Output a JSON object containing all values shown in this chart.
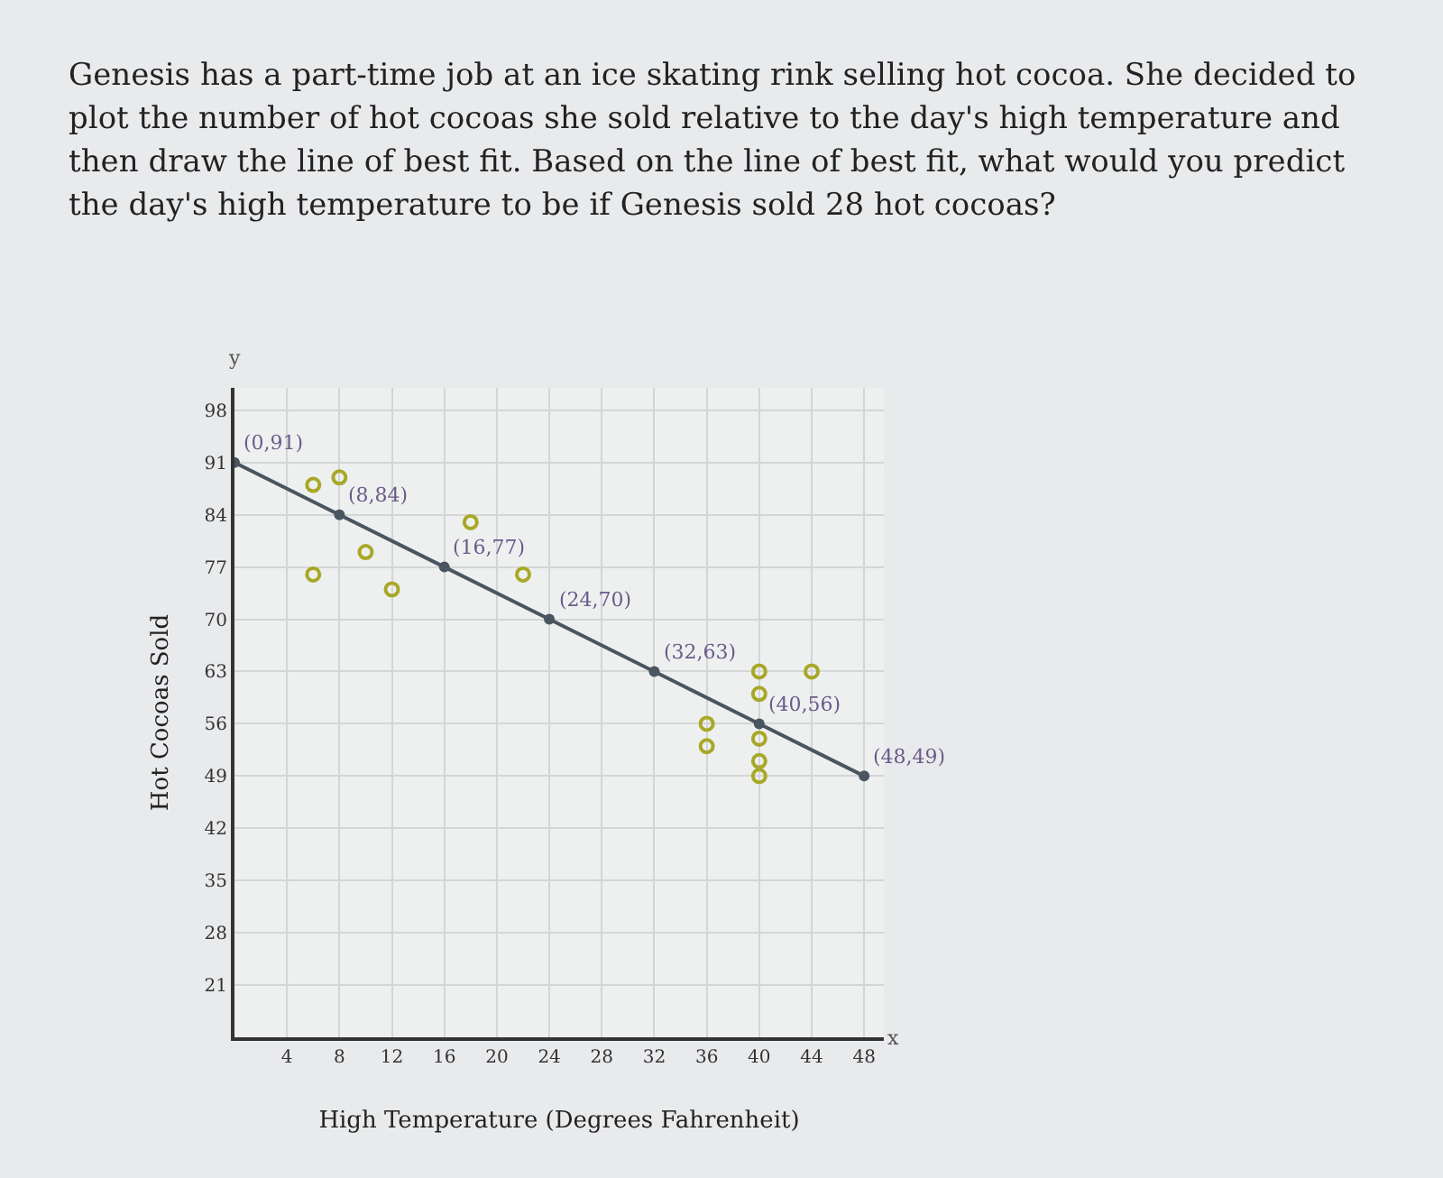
{
  "chart_data": {
    "type": "scatter",
    "title": "Genesis has a part-time job at an ice skating rink selling hot cocoa. She decided to plot the number of hot cocoas she sold relative to the day's high temperature and then draw the line of best fit. Based on the line of best fit, what would you predict the day's high temperature to be if Genesis sold 28 hot cocoas?",
    "xlabel": "High Temperature (Degrees Fahrenheit)",
    "ylabel": "Hot Cocoas Sold",
    "annotations": [
      "x",
      "y",
      {
        "text": "(0,91)",
        "x": 0,
        "y": 91
      },
      {
        "text": "(8,84)",
        "x": 8,
        "y": 84
      },
      {
        "text": "(16,77)",
        "x": 16,
        "y": 77
      },
      {
        "text": "(24,70)",
        "x": 24,
        "y": 70
      },
      {
        "text": "(32,63)",
        "x": 32,
        "y": 63
      },
      {
        "text": "(40,56)",
        "x": 40,
        "y": 56
      },
      {
        "text": "(48,49)",
        "x": 48,
        "y": 49
      }
    ],
    "series": [
      {
        "color": "#a8a828",
        "x": [
          6,
          8,
          6,
          10,
          12,
          18,
          22,
          36,
          36,
          40,
          40,
          40,
          40,
          40,
          44
        ],
        "values": [
          88,
          89,
          76,
          79,
          74,
          83,
          76,
          56,
          53,
          63,
          60,
          54,
          51,
          49,
          63
        ]
      },
      {
        "type": "line",
        "color": "#4a5560",
        "x": [
          0,
          8,
          16,
          24,
          32,
          40,
          48
        ],
        "values": [
          91,
          84,
          77,
          70,
          63,
          56,
          49
        ]
      }
    ],
    "xlim": [
      0,
      49.5
    ],
    "xticks": [
      4,
      8,
      12,
      16,
      20,
      24,
      28,
      32,
      36,
      40,
      44,
      48
    ],
    "ylim": [
      14,
      101
    ],
    "yticks": [
      21,
      28,
      35,
      42,
      49,
      56,
      63,
      70,
      77,
      84,
      91,
      98
    ],
    "grid": true,
    "legend": false,
    "marker": "circle",
    "line_style": "solid"
  }
}
